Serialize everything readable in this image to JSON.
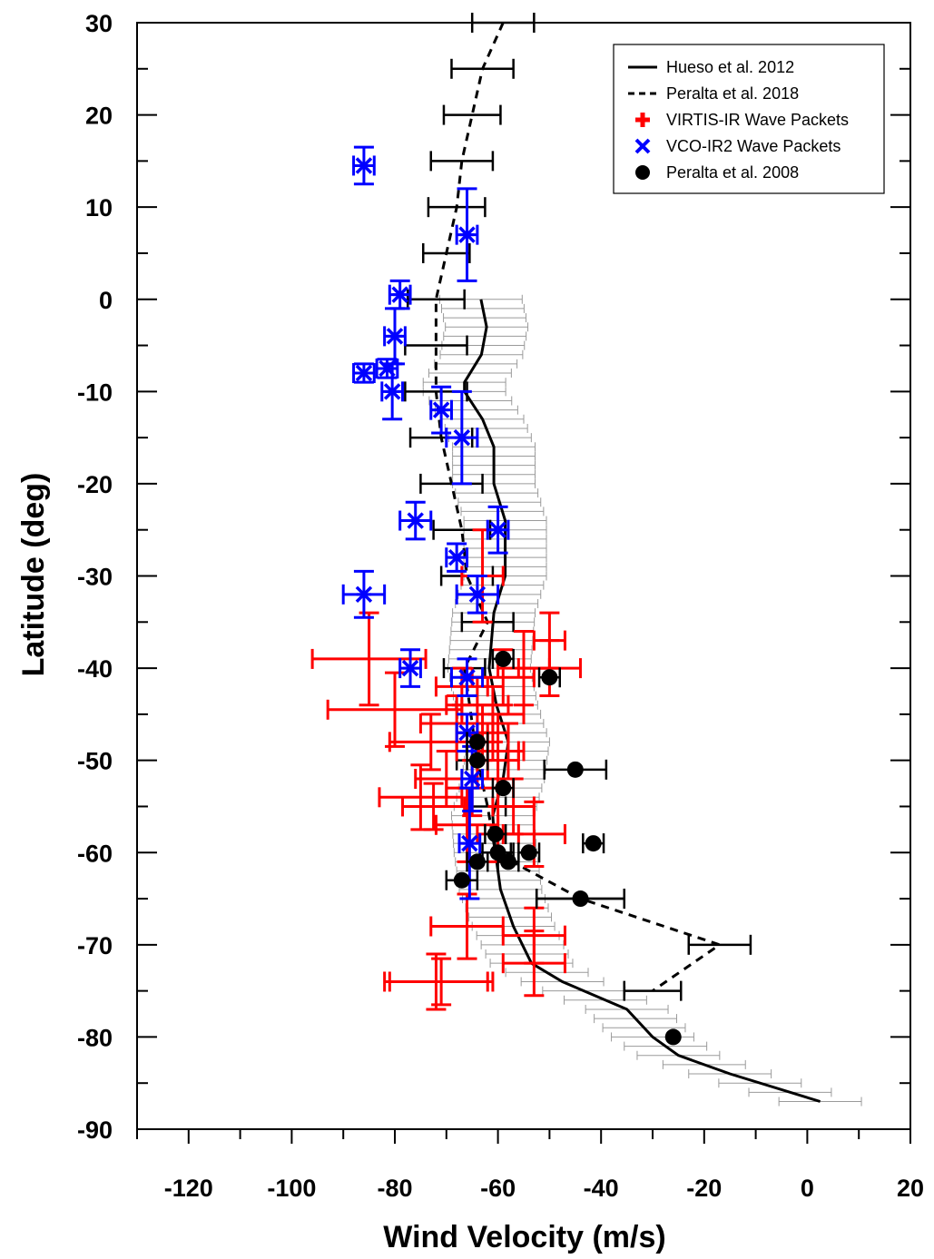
{
  "chart_data": {
    "type": "scatter",
    "title": "",
    "xlabel": "Wind Velocity (m/s)",
    "ylabel": "Latitude (deg)",
    "xlim": [
      -130,
      20
    ],
    "ylim": [
      -90,
      30
    ],
    "xticks": [
      -120,
      -100,
      -80,
      -60,
      -40,
      -20,
      0,
      20
    ],
    "yticks": [
      -90,
      -80,
      -70,
      -60,
      -50,
      -40,
      -30,
      -20,
      -10,
      0,
      10,
      20,
      30
    ],
    "xtick_labels": [
      "-120",
      "-100",
      "-80",
      "-60",
      "-40",
      "-20",
      "0",
      "20"
    ],
    "ytick_labels": [
      "-90",
      "-80",
      "-70",
      "-60",
      "-50",
      "-40",
      "-30",
      "-20",
      "-10",
      "0",
      "10",
      "20",
      "30"
    ],
    "legend_position": "top-right",
    "series": [
      {
        "name": "Hueso et al. 2012",
        "kind": "line",
        "style": "solid",
        "color": "#000000",
        "error_color": "#9a9a9a",
        "xerr": 8,
        "x": [
          -63.3,
          -62.2,
          -63.2,
          -66.5,
          -66.5,
          -63.0,
          -60.8,
          -60.8,
          -58.6,
          -58.6,
          -60.8,
          -61.7,
          -60.3,
          -58.0,
          -59.0,
          -61.0,
          -60.5,
          -59.5,
          -57.0,
          -53.5,
          -47.5,
          -35.0,
          -30.0,
          -25.0,
          -15.0,
          2.5
        ],
        "y": [
          0,
          -3,
          -6,
          -9,
          -10,
          -13,
          -16,
          -20,
          -24,
          -30,
          -34,
          -40,
          -44,
          -48,
          -52,
          -56,
          -60,
          -64,
          -68,
          -72,
          -74,
          -77,
          -80,
          -82,
          -84,
          -87
        ]
      },
      {
        "name": "Peralta et al. 2018",
        "kind": "line",
        "style": "dashed",
        "color": "#000000",
        "x": [
          -59,
          -63,
          -65,
          -67,
          -68,
          -70,
          -72,
          -72,
          -72,
          -71,
          -69,
          -67,
          -66,
          -62,
          -66.5,
          -64,
          -62,
          -60.5,
          -44,
          -17,
          -30
        ],
        "xerr": [
          6,
          6,
          5.5,
          6,
          5.5,
          4.5,
          5.5,
          6,
          6,
          6,
          6,
          5.5,
          5,
          5,
          4,
          4,
          3.5,
          3,
          8.5,
          6,
          5.5
        ],
        "y": [
          30,
          25,
          20,
          15,
          10,
          5,
          0,
          -5,
          -10,
          -15,
          -20,
          -25,
          -30,
          -35,
          -40,
          -50,
          -55,
          -60,
          -65,
          -70,
          -75
        ]
      },
      {
        "name": "VIRTIS-IR Wave Packets",
        "kind": "crosses",
        "color": "#ff0000",
        "points": [
          [
            -85,
            -39,
            11,
            5
          ],
          [
            -80,
            -44.5,
            13,
            4
          ],
          [
            -75,
            -54,
            8,
            3.5
          ],
          [
            -73,
            -48,
            8,
            3
          ],
          [
            -72.5,
            -55,
            6,
            2.5
          ],
          [
            -72,
            -74,
            10,
            3
          ],
          [
            -71,
            -74,
            10,
            2.5
          ],
          [
            -70,
            -52,
            6,
            3
          ],
          [
            -68,
            -46,
            7,
            3
          ],
          [
            -67,
            -42,
            5,
            2
          ],
          [
            -66,
            -68,
            7,
            3.5
          ],
          [
            -66,
            -57,
            6,
            4
          ],
          [
            -65,
            -53,
            5,
            3
          ],
          [
            -64,
            -44,
            6,
            3
          ],
          [
            -63,
            -30,
            4,
            5
          ],
          [
            -63,
            -47,
            5,
            3
          ],
          [
            -62,
            -49,
            6,
            3
          ],
          [
            -61,
            -45,
            6,
            3
          ],
          [
            -60,
            -50,
            4,
            5
          ],
          [
            -60,
            -58,
            4,
            3
          ],
          [
            -59,
            -41,
            6,
            3
          ],
          [
            -58,
            -49,
            3,
            3
          ],
          [
            -57,
            -55,
            4,
            3
          ],
          [
            -55,
            -40,
            5,
            4
          ],
          [
            -53,
            -69,
            6,
            3
          ],
          [
            -53,
            -72,
            6,
            3.5
          ],
          [
            -53,
            -58,
            6,
            3.5
          ],
          [
            -50,
            -40,
            6,
            3
          ],
          [
            -50,
            -37,
            3,
            3
          ]
        ]
      },
      {
        "name": "VCO-IR2 Wave Packets",
        "kind": "asterisks",
        "color": "#0000ff",
        "points": [
          [
            -86,
            14.5,
            2,
            2
          ],
          [
            -66,
            7,
            2,
            5
          ],
          [
            -79,
            0.5,
            2,
            1.5
          ],
          [
            -80,
            -4,
            2,
            3
          ],
          [
            -86,
            -8,
            2,
            1
          ],
          [
            -81.5,
            -7.5,
            2,
            1
          ],
          [
            -80.5,
            -10,
            2,
            3
          ],
          [
            -71,
            -12,
            2,
            2.5
          ],
          [
            -67,
            -15,
            3,
            5
          ],
          [
            -76,
            -24,
            3,
            2
          ],
          [
            -60,
            -25,
            2,
            2.5
          ],
          [
            -68,
            -28,
            2,
            1.5
          ],
          [
            -64,
            -32,
            4,
            2
          ],
          [
            -86,
            -32,
            4,
            2.5
          ],
          [
            -77,
            -40,
            2,
            2
          ],
          [
            -66,
            -41,
            3,
            2
          ],
          [
            -66,
            -47,
            2,
            2
          ],
          [
            -65,
            -52,
            2,
            3.5
          ],
          [
            -65.5,
            -59,
            2,
            6
          ]
        ]
      },
      {
        "name": "Peralta et al. 2008",
        "kind": "points",
        "color": "#000000",
        "points": [
          [
            -59,
            -39,
            2
          ],
          [
            -50,
            -41,
            2
          ],
          [
            -64,
            -48,
            2
          ],
          [
            -64,
            -50,
            2
          ],
          [
            -45,
            -51,
            6
          ],
          [
            -59,
            -53,
            2
          ],
          [
            -60.5,
            -58,
            2
          ],
          [
            -41.5,
            -59,
            2
          ],
          [
            -60,
            -60,
            3
          ],
          [
            -54,
            -60,
            2
          ],
          [
            -58,
            -61,
            2
          ],
          [
            -64,
            -61,
            2
          ],
          [
            -67,
            -63,
            3
          ],
          [
            -44,
            -65,
            8.5
          ],
          [
            -26,
            -80,
            0
          ]
        ]
      }
    ]
  }
}
